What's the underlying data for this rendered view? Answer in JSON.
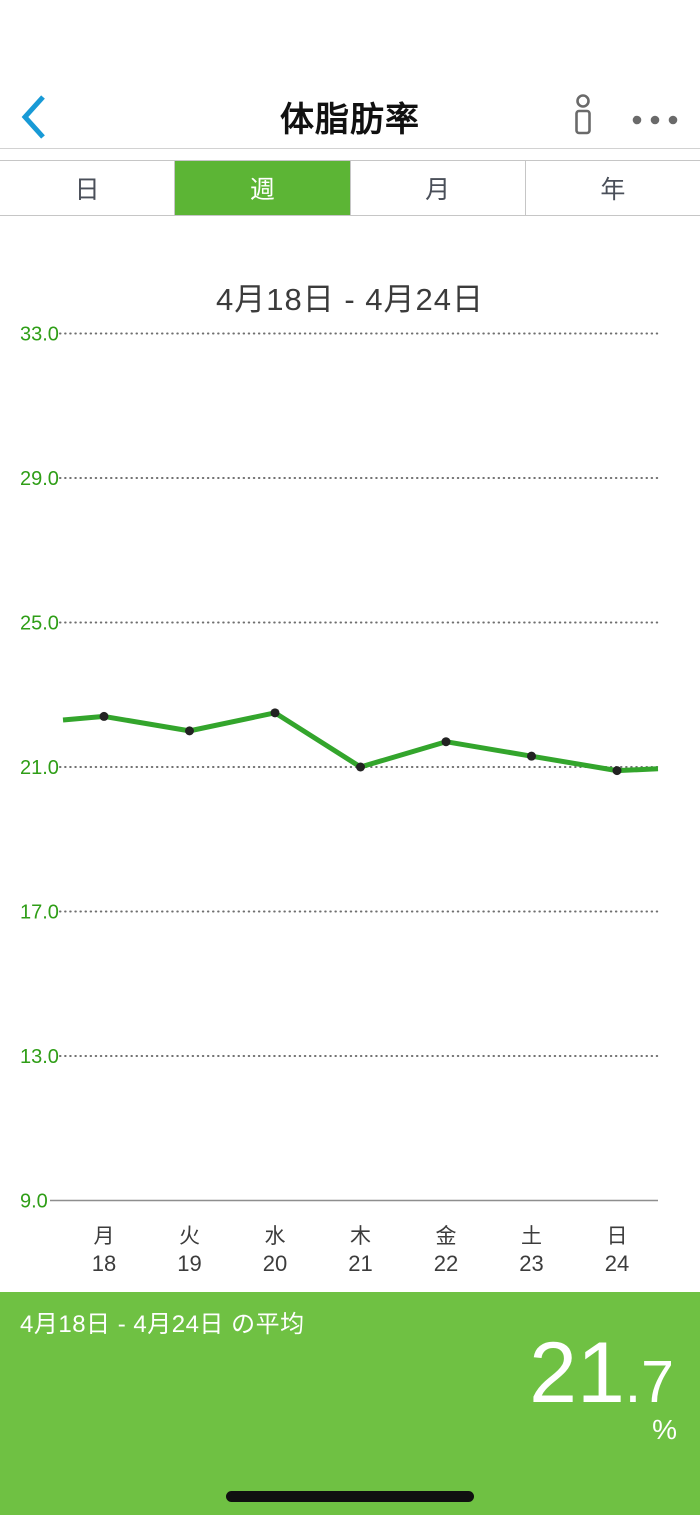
{
  "header": {
    "title": "体脂肪率",
    "back_icon": "chevron-left",
    "body_icon": "body-figure",
    "more_icon": "ellipsis-horizontal"
  },
  "tabs": [
    {
      "label": "日",
      "selected": false
    },
    {
      "label": "週",
      "selected": true
    },
    {
      "label": "月",
      "selected": false
    },
    {
      "label": "年",
      "selected": false
    }
  ],
  "period_title": "4月18日 - 4月24日",
  "chart_data": {
    "type": "line",
    "title": "4月18日 - 4月24日",
    "categories": [
      "月",
      "火",
      "水",
      "木",
      "金",
      "土",
      "日"
    ],
    "dates": [
      "18",
      "19",
      "20",
      "21",
      "22",
      "23",
      "24"
    ],
    "values": [
      22.4,
      22.0,
      22.5,
      21.0,
      21.7,
      21.3,
      20.9
    ],
    "edge_left_value": 22.3,
    "edge_right_value": 20.95,
    "yticks": [
      33.0,
      29.0,
      25.0,
      21.0,
      17.0,
      13.0,
      9.0
    ],
    "ylim": [
      9.0,
      33.6
    ],
    "unit": "%",
    "grid": "dotted horizontal lines, solid baseline at 9.0",
    "legend": "none",
    "line_color": "#33a52c",
    "point_color": "#222222",
    "axis_label_color": "#2f9e17",
    "tick_label_color": "#3c3c3c"
  },
  "summary": {
    "label": "4月18日 - 4月24日 の平均",
    "value_integer": "21",
    "value_decimal": ".7",
    "unit": "%"
  },
  "colors": {
    "accent_blue": "#189ad6",
    "icon_gray": "#6a6a6a",
    "tab_selected_green": "#5cb535",
    "tab_border": "#c6c6c6",
    "panel_green": "#6fc143",
    "grid_gray": "#6f6f6f",
    "axis_line_gray": "#8e8e8e",
    "home_indicator_black": "#101010"
  }
}
